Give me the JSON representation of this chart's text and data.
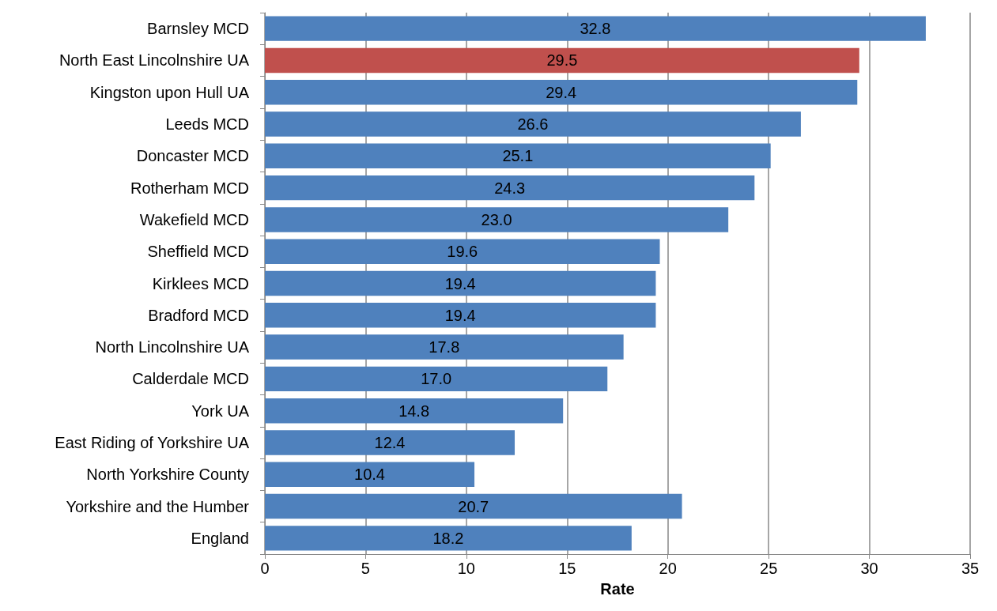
{
  "chart_data": {
    "type": "bar",
    "orientation": "horizontal",
    "xlabel": "Rate",
    "categories": [
      "Barnsley MCD",
      "North East Lincolnshire UA",
      "Kingston upon Hull UA",
      "Leeds MCD",
      "Doncaster MCD",
      "Rotherham MCD",
      "Wakefield MCD",
      "Sheffield MCD",
      "Kirklees MCD",
      "Bradford MCD",
      "North Lincolnshire UA",
      "Calderdale MCD",
      "York UA",
      "East Riding of Yorkshire UA",
      "North Yorkshire County",
      "Yorkshire and the Humber",
      "England"
    ],
    "values": [
      32.8,
      29.5,
      29.4,
      26.6,
      25.1,
      24.3,
      23.0,
      19.6,
      19.4,
      19.4,
      17.8,
      17.0,
      14.8,
      12.4,
      10.4,
      20.7,
      18.2
    ],
    "colors": [
      "#4f81bd",
      "#c0504d",
      "#4f81bd",
      "#4f81bd",
      "#4f81bd",
      "#4f81bd",
      "#4f81bd",
      "#4f81bd",
      "#4f81bd",
      "#4f81bd",
      "#4f81bd",
      "#4f81bd",
      "#4f81bd",
      "#4f81bd",
      "#4f81bd",
      "#4f81bd",
      "#4f81bd"
    ],
    "value_labels": [
      "32.8",
      "29.5",
      "29.4",
      "26.6",
      "25.1",
      "24.3",
      "23.0",
      "19.6",
      "19.4",
      "19.4",
      "17.8",
      "17.0",
      "14.8",
      "12.4",
      "10.4",
      "20.7",
      "18.2"
    ],
    "xlim": [
      0,
      35
    ],
    "xticks": [
      0,
      5,
      10,
      15,
      20,
      25,
      30,
      35
    ],
    "grid": "x"
  }
}
